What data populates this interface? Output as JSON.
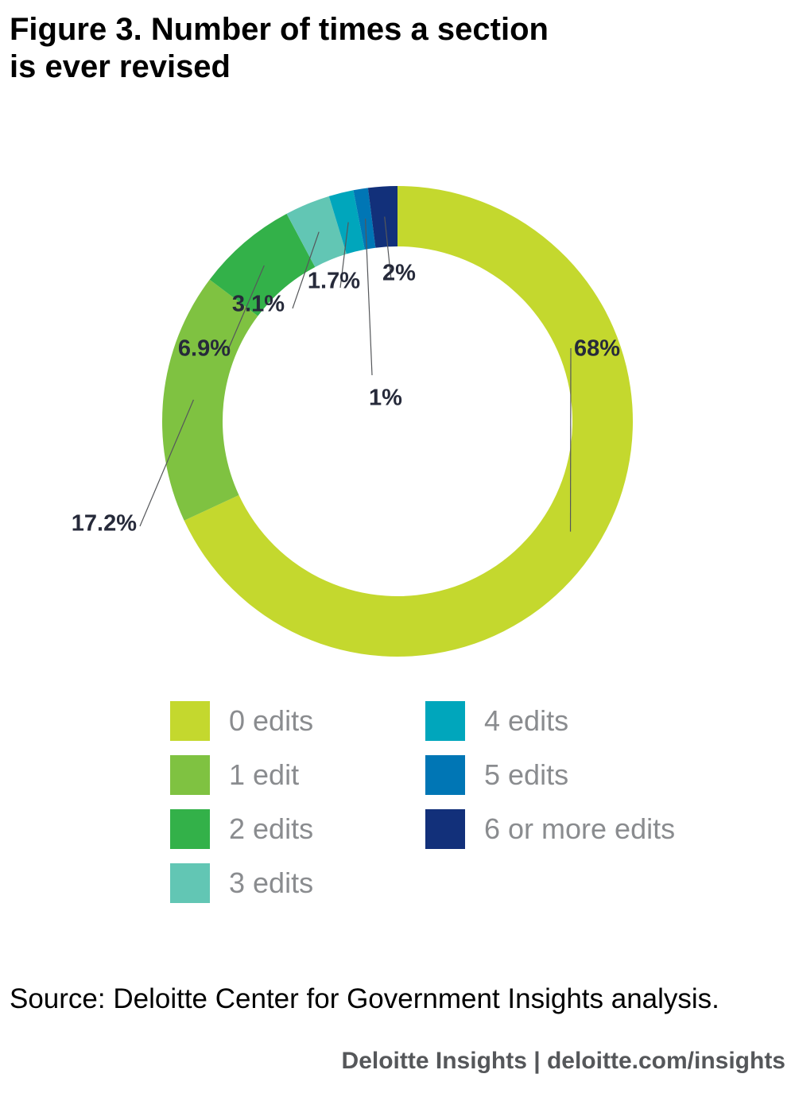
{
  "title_lines": [
    "Figure 3. Number of times a section",
    "is ever revised"
  ],
  "chart_data": {
    "type": "pie",
    "style": "donut",
    "title": "Figure 3. Number of times a section is ever revised",
    "categories": [
      "0 edits",
      "1 edit",
      "2 edits",
      "3 edits",
      "4 edits",
      "5 edits",
      "6 or more edits"
    ],
    "values": [
      68,
      17.2,
      6.9,
      3.1,
      1.7,
      1,
      2
    ],
    "data_labels": [
      "68%",
      "17.2%",
      "6.9%",
      "3.1%",
      "1.7%",
      "1%",
      "2%"
    ],
    "colors": [
      "#c4d82e",
      "#7fc241",
      "#33b149",
      "#62c6b4",
      "#00a6bc",
      "#0076b5",
      "#12307a"
    ],
    "legend_placement": "bottom"
  },
  "source": "Source: Deloitte Center for Government Insights analysis.",
  "footer": "Deloitte Insights | deloitte.com/insights"
}
